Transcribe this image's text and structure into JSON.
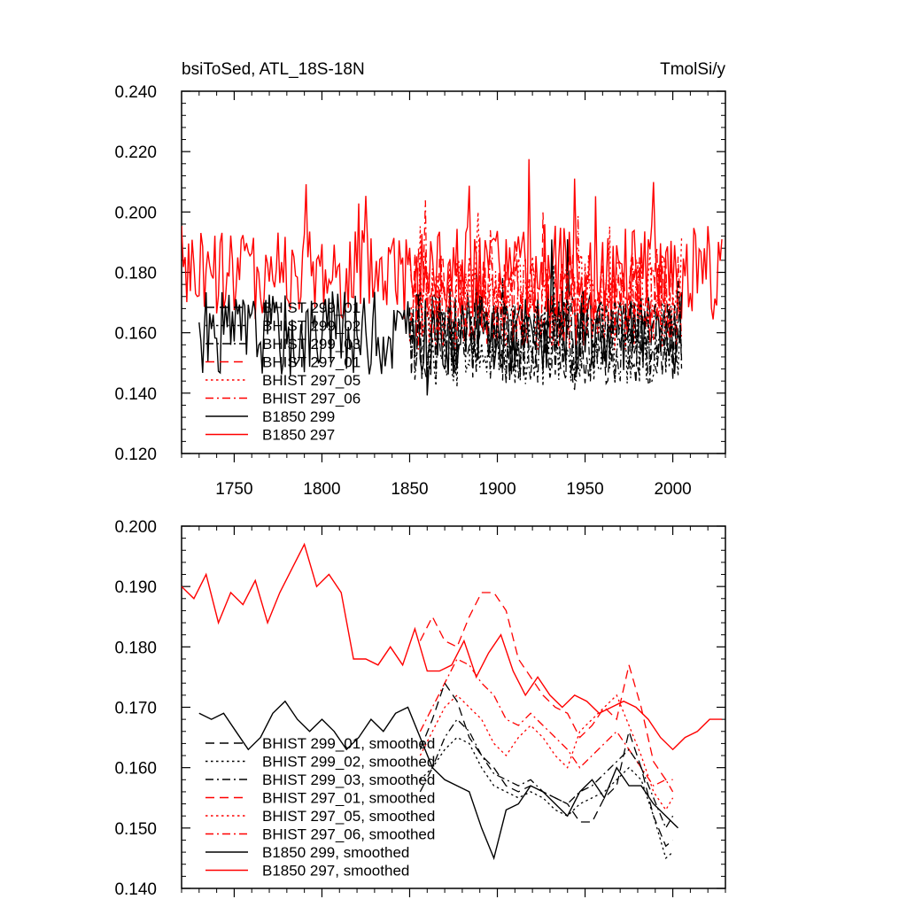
{
  "chart_data": [
    {
      "type": "line",
      "title": "bsiToSed, ATL_18S-18N",
      "units_label": "TmolSi/y",
      "xlabel": "",
      "ylabel": "",
      "xlim": [
        1720,
        2030
      ],
      "ylim": [
        0.12,
        0.24
      ],
      "x_ticks": [
        1750,
        1800,
        1850,
        1900,
        1950,
        2000
      ],
      "x_tick_labels": [
        "1750",
        "1800",
        "1850",
        "1900",
        "1950",
        "2000"
      ],
      "y_ticks": [
        0.12,
        0.14,
        0.16,
        0.18,
        0.2,
        0.22,
        0.24
      ],
      "y_tick_labels": [
        "0.120",
        "0.140",
        "0.160",
        "0.180",
        "0.200",
        "0.220",
        "0.240"
      ],
      "legend_position": "bottom-left",
      "series": [
        {
          "name": "BHIST 299_01",
          "color": "#000000",
          "dash": "long-dash",
          "x_start": 1850,
          "x_end": 2005,
          "mean": 0.157,
          "amplitude": 0.014,
          "seed": 11
        },
        {
          "name": "BHIST 299_02",
          "color": "#000000",
          "dash": "dot",
          "x_start": 1850,
          "x_end": 2005,
          "mean": 0.156,
          "amplitude": 0.014,
          "seed": 12
        },
        {
          "name": "BHIST 299_03",
          "color": "#000000",
          "dash": "dash-dot",
          "x_start": 1850,
          "x_end": 2005,
          "mean": 0.157,
          "amplitude": 0.014,
          "seed": 13
        },
        {
          "name": "BHIST 297_01",
          "color": "#ff0000",
          "dash": "long-dash",
          "x_start": 1850,
          "x_end": 2005,
          "mean": 0.172,
          "amplitude": 0.016,
          "seed": 21
        },
        {
          "name": "BHIST 297_05",
          "color": "#ff0000",
          "dash": "dot",
          "x_start": 1850,
          "x_end": 2005,
          "mean": 0.17,
          "amplitude": 0.016,
          "seed": 22
        },
        {
          "name": "BHIST 297_06",
          "color": "#ff0000",
          "dash": "dash-dot",
          "x_start": 1850,
          "x_end": 2005,
          "mean": 0.171,
          "amplitude": 0.016,
          "seed": 23
        },
        {
          "name": "B1850 299",
          "color": "#000000",
          "dash": "solid",
          "x_start": 1730,
          "x_end": 2005,
          "mean": 0.16,
          "amplitude": 0.014,
          "seed": 31
        },
        {
          "name": "B1850 297",
          "color": "#ff0000",
          "dash": "solid",
          "x_start": 1720,
          "x_end": 2028,
          "mean": 0.18,
          "amplitude": 0.016,
          "seed": 41
        }
      ]
    },
    {
      "type": "line",
      "title": "",
      "units_label": "",
      "xlabel": "",
      "ylabel": "",
      "xlim": [
        1720,
        2030
      ],
      "ylim": [
        0.14,
        0.2
      ],
      "x_ticks": [
        1750,
        1800,
        1850,
        1900,
        1950,
        2000
      ],
      "x_tick_labels": [],
      "y_ticks": [
        0.14,
        0.15,
        0.16,
        0.17,
        0.18,
        0.19,
        0.2
      ],
      "y_tick_labels": [
        "0.140",
        "0.150",
        "0.160",
        "0.170",
        "0.180",
        "0.190",
        "0.200"
      ],
      "legend_position": "bottom-left",
      "series": [
        {
          "name": "BHIST 299_01, smoothed",
          "color": "#000000",
          "dash": "long-dash",
          "x": [
            1856,
            1863,
            1870,
            1877,
            1884,
            1891,
            1898,
            1905,
            1912,
            1919,
            1926,
            1933,
            1940,
            1947,
            1954,
            1961,
            1968,
            1975,
            1982,
            1989,
            1996,
            2000
          ],
          "y": [
            0.163,
            0.168,
            0.174,
            0.171,
            0.165,
            0.162,
            0.16,
            0.157,
            0.156,
            0.157,
            0.156,
            0.155,
            0.154,
            0.151,
            0.151,
            0.155,
            0.157,
            0.166,
            0.16,
            0.152,
            0.147,
            0.148
          ]
        },
        {
          "name": "BHIST 299_02, smoothed",
          "color": "#000000",
          "dash": "dot",
          "x": [
            1856,
            1863,
            1870,
            1877,
            1884,
            1891,
            1898,
            1905,
            1912,
            1919,
            1926,
            1933,
            1940,
            1947,
            1954,
            1961,
            1968,
            1975,
            1982,
            1989,
            1996,
            2000
          ],
          "y": [
            0.158,
            0.16,
            0.163,
            0.165,
            0.164,
            0.16,
            0.157,
            0.156,
            0.155,
            0.156,
            0.155,
            0.153,
            0.152,
            0.154,
            0.155,
            0.156,
            0.158,
            0.16,
            0.158,
            0.152,
            0.145,
            0.146
          ]
        },
        {
          "name": "BHIST 299_03, smoothed",
          "color": "#000000",
          "dash": "dash-dot",
          "x": [
            1856,
            1863,
            1870,
            1877,
            1884,
            1891,
            1898,
            1905,
            1912,
            1919,
            1926,
            1933,
            1940,
            1947,
            1954,
            1961,
            1968,
            1975,
            1982,
            1989,
            1996,
            2000
          ],
          "y": [
            0.156,
            0.16,
            0.165,
            0.168,
            0.166,
            0.162,
            0.159,
            0.158,
            0.157,
            0.158,
            0.156,
            0.155,
            0.154,
            0.156,
            0.157,
            0.159,
            0.161,
            0.163,
            0.16,
            0.155,
            0.15,
            0.152
          ]
        },
        {
          "name": "BHIST 297_01, smoothed",
          "color": "#ff0000",
          "dash": "long-dash",
          "x": [
            1856,
            1863,
            1870,
            1877,
            1884,
            1891,
            1898,
            1905,
            1912,
            1919,
            1926,
            1933,
            1940,
            1947,
            1954,
            1961,
            1968,
            1975,
            1982,
            1989,
            1996,
            2000
          ],
          "y": [
            0.181,
            0.185,
            0.181,
            0.18,
            0.185,
            0.189,
            0.189,
            0.186,
            0.178,
            0.175,
            0.172,
            0.17,
            0.169,
            0.165,
            0.167,
            0.17,
            0.168,
            0.177,
            0.17,
            0.161,
            0.158,
            0.158
          ]
        },
        {
          "name": "BHIST 297_05, smoothed",
          "color": "#ff0000",
          "dash": "dot",
          "x": [
            1856,
            1863,
            1870,
            1877,
            1884,
            1891,
            1898,
            1905,
            1912,
            1919,
            1926,
            1933,
            1940,
            1947,
            1954,
            1961,
            1968,
            1975,
            1982,
            1989,
            1996,
            2000
          ],
          "y": [
            0.162,
            0.166,
            0.17,
            0.172,
            0.17,
            0.168,
            0.164,
            0.162,
            0.165,
            0.167,
            0.165,
            0.162,
            0.16,
            0.166,
            0.168,
            0.17,
            0.172,
            0.167,
            0.162,
            0.156,
            0.153,
            0.155
          ]
        },
        {
          "name": "BHIST 297_06, smoothed",
          "color": "#ff0000",
          "dash": "dash-dot",
          "x": [
            1856,
            1863,
            1870,
            1877,
            1884,
            1891,
            1898,
            1905,
            1912,
            1919,
            1926,
            1933,
            1940,
            1947,
            1954,
            1961,
            1968,
            1975,
            1982,
            1989,
            1996,
            2000
          ],
          "y": [
            0.166,
            0.17,
            0.174,
            0.178,
            0.177,
            0.174,
            0.172,
            0.168,
            0.167,
            0.169,
            0.167,
            0.165,
            0.163,
            0.16,
            0.162,
            0.164,
            0.166,
            0.163,
            0.16,
            0.157,
            0.158,
            0.156
          ]
        },
        {
          "name": "B1850 299, smoothed",
          "color": "#000000",
          "dash": "solid",
          "x": [
            1730,
            1737,
            1744,
            1751,
            1758,
            1765,
            1772,
            1779,
            1786,
            1793,
            1800,
            1807,
            1814,
            1821,
            1828,
            1835,
            1842,
            1849,
            1856,
            1863,
            1870,
            1877,
            1884,
            1891,
            1898,
            1905,
            1912,
            1919,
            1926,
            1933,
            1940,
            1947,
            1954,
            1961,
            1968,
            1975,
            1982,
            1989,
            1996,
            2003
          ],
          "y": [
            0.169,
            0.168,
            0.169,
            0.166,
            0.163,
            0.165,
            0.169,
            0.171,
            0.168,
            0.166,
            0.168,
            0.166,
            0.163,
            0.165,
            0.168,
            0.166,
            0.169,
            0.17,
            0.165,
            0.16,
            0.158,
            0.157,
            0.156,
            0.15,
            0.145,
            0.153,
            0.154,
            0.157,
            0.156,
            0.154,
            0.152,
            0.156,
            0.158,
            0.155,
            0.16,
            0.157,
            0.157,
            0.154,
            0.152,
            0.15
          ]
        },
        {
          "name": "B1850 297, smoothed",
          "color": "#ff0000",
          "dash": "solid",
          "x": [
            1720,
            1727,
            1734,
            1741,
            1748,
            1755,
            1762,
            1769,
            1776,
            1783,
            1790,
            1797,
            1804,
            1811,
            1818,
            1825,
            1832,
            1839,
            1846,
            1853,
            1860,
            1867,
            1874,
            1881,
            1888,
            1895,
            1902,
            1909,
            1916,
            1923,
            1930,
            1937,
            1944,
            1951,
            1958,
            1965,
            1972,
            1979,
            1986,
            1993,
            2000,
            2007,
            2014,
            2021,
            2028
          ],
          "y": [
            0.19,
            0.188,
            0.192,
            0.184,
            0.189,
            0.187,
            0.191,
            0.184,
            0.189,
            0.193,
            0.197,
            0.19,
            0.192,
            0.189,
            0.178,
            0.178,
            0.177,
            0.18,
            0.177,
            0.183,
            0.176,
            0.176,
            0.177,
            0.181,
            0.175,
            0.179,
            0.182,
            0.176,
            0.172,
            0.175,
            0.172,
            0.17,
            0.172,
            0.171,
            0.169,
            0.17,
            0.171,
            0.17,
            0.168,
            0.165,
            0.163,
            0.165,
            0.166,
            0.168,
            0.168
          ]
        }
      ]
    }
  ]
}
